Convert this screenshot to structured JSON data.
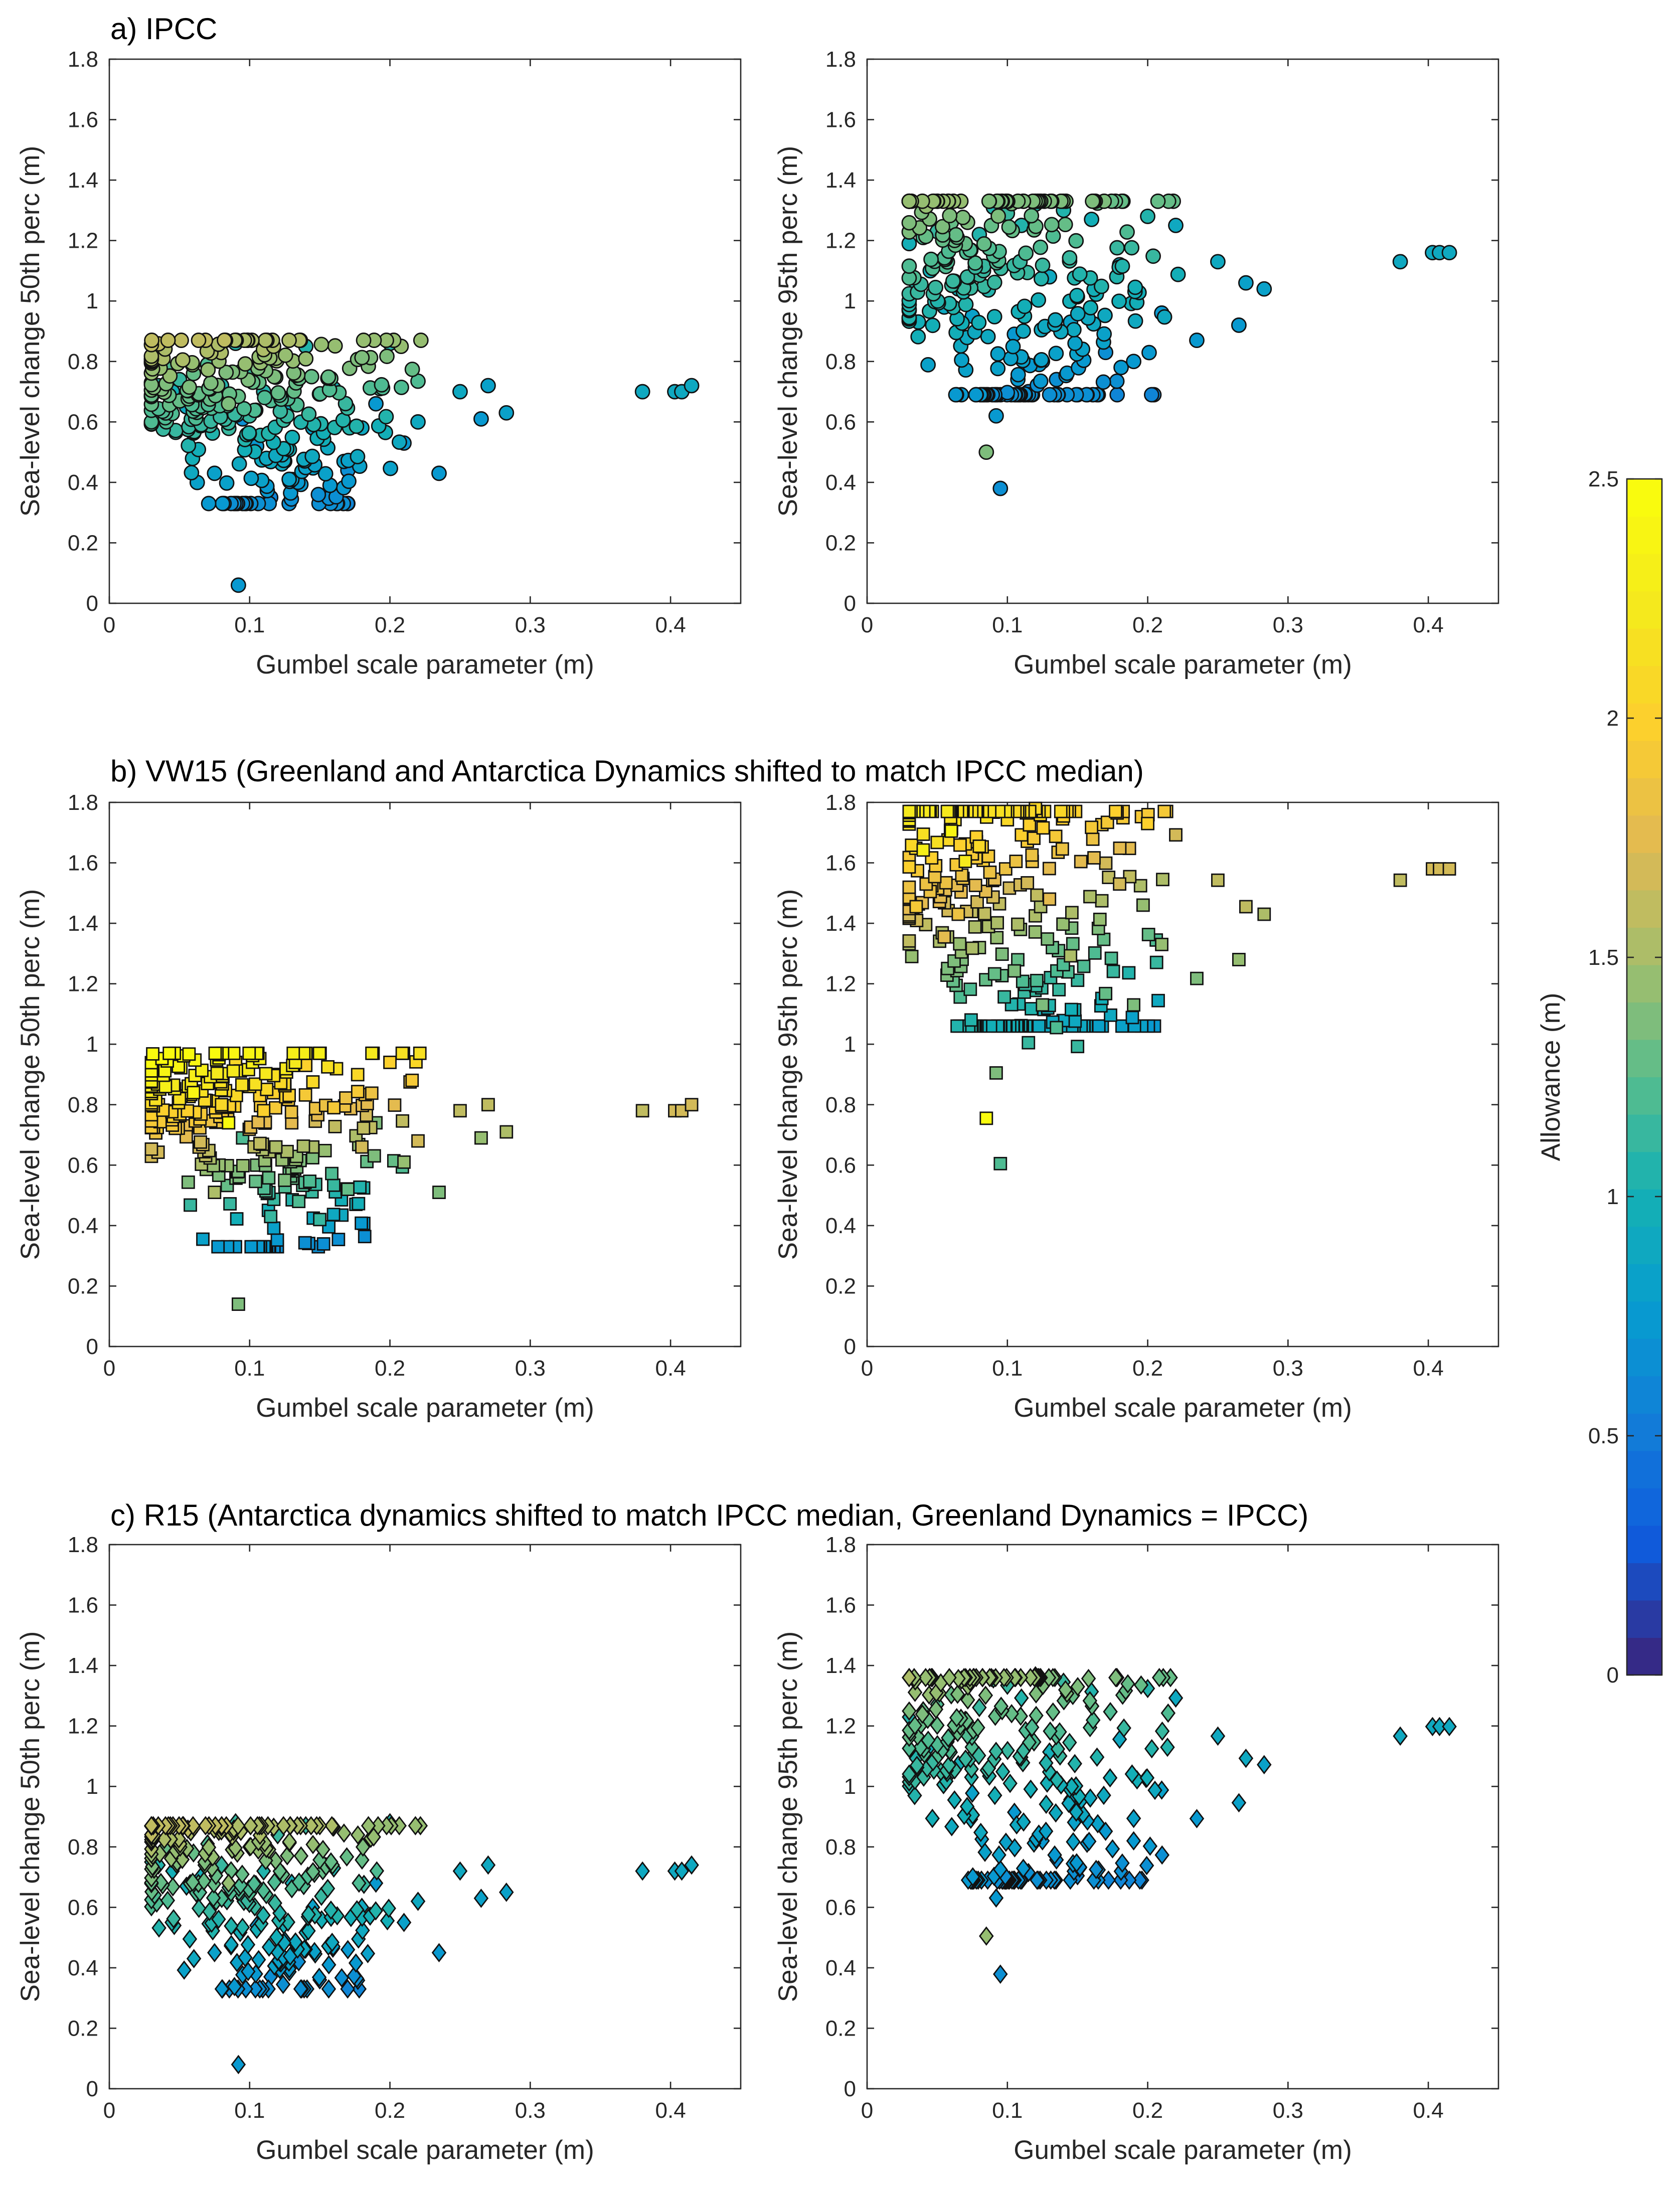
{
  "figure": {
    "panel_titles": [
      "a) IPCC",
      "b) VW15 (Greenland and Antarctica Dynamics shifted to match IPCC median)",
      "c) R15 (Antarctica dynamics shifted to match IPCC median, Greenland Dynamics = IPCC)"
    ]
  },
  "chart_data": {
    "type": "scatter",
    "xlabel": "Gumbel scale parameter (m)",
    "ylabels": {
      "p50": "Sea-level change 50th perc (m)",
      "p95": "Sea-level change 95th perc (m)"
    },
    "xlim": [
      0,
      0.45
    ],
    "ylim": [
      0,
      1.8
    ],
    "xticks": [
      0,
      0.1,
      0.2,
      0.3,
      0.4
    ],
    "xtick_labels": [
      "0",
      "0.1",
      "0.2",
      "0.3",
      "0.4"
    ],
    "yticks": [
      0,
      0.2,
      0.4,
      0.6,
      0.8,
      1,
      1.2,
      1.4,
      1.6,
      1.8
    ],
    "ytick_labels": [
      "0",
      "0.2",
      "0.4",
      "0.6",
      "0.8",
      "1",
      "1.2",
      "1.4",
      "1.6",
      "1.8"
    ],
    "colorbar": {
      "label": "Allowance (m)",
      "range": [
        0,
        2.5
      ],
      "ticks": [
        0,
        0.5,
        1,
        1.5,
        2,
        2.5
      ],
      "tick_labels": [
        "0",
        "0.5",
        "1",
        "1.5",
        "2",
        "2.5"
      ],
      "colormap": "parula",
      "levels": 32
    },
    "panels": [
      {
        "id": "a",
        "dataset": "IPCC",
        "marker": "circle",
        "generator_seed": 11,
        "y50_offset": 0.0,
        "y95_offset": 0.0,
        "slope95": 1.0,
        "allow_base": 1.05
      },
      {
        "id": "b",
        "dataset": "VW15",
        "marker": "square",
        "generator_seed": 23,
        "y50_offset": 0.08,
        "y95_offset": 0.38,
        "slope95": 1.25,
        "allow_base": 2.0
      },
      {
        "id": "c",
        "dataset": "R15",
        "marker": "diamond",
        "generator_seed": 37,
        "y50_offset": 0.02,
        "y95_offset": 0.03,
        "slope95": 1.05,
        "allow_base": 1.1
      }
    ],
    "base_points": {
      "x": [
        0.03,
        0.035,
        0.04,
        0.045,
        0.05,
        0.055,
        0.06,
        0.065,
        0.07,
        0.075,
        0.08,
        0.085,
        0.09,
        0.092,
        0.095,
        0.1,
        0.105,
        0.11,
        0.115,
        0.12,
        0.125,
        0.13,
        0.135,
        0.14,
        0.145,
        0.15,
        0.16,
        0.17,
        0.18,
        0.19,
        0.2,
        0.21,
        0.22,
        0.235,
        0.25,
        0.265,
        0.27,
        0.283,
        0.38,
        0.403,
        0.408,
        0.415
      ],
      "y50": [
        0.73,
        0.72,
        0.78,
        0.7,
        0.74,
        0.65,
        0.76,
        0.68,
        0.79,
        0.43,
        0.72,
        0.66,
        0.86,
        0.06,
        0.61,
        0.78,
        0.52,
        0.7,
        0.35,
        0.82,
        0.47,
        0.66,
        0.4,
        0.85,
        0.58,
        0.34,
        0.71,
        0.44,
        0.58,
        0.66,
        0.86,
        0.53,
        0.6,
        0.43,
        0.7,
        0.61,
        0.72,
        0.63,
        0.7,
        0.7,
        0.7,
        0.72
      ],
      "y95": [
        1.19,
        1.06,
        1.21,
        1.1,
        1.23,
        0.98,
        1.26,
        1.04,
        1.18,
        0.95,
        1.22,
        0.5,
        1.31,
        0.62,
        0.38,
        1.29,
        0.89,
        1.25,
        0.7,
        1.32,
        0.8,
        1.08,
        0.74,
        1.3,
        0.93,
        0.69,
        1.27,
        0.83,
        1.12,
        0.8,
        1.28,
        0.96,
        1.25,
        0.87,
        1.13,
        0.92,
        1.06,
        1.04,
        1.13,
        1.16,
        1.16,
        1.16
      ]
    },
    "allowance_base": [
      0.95,
      0.97,
      1.15,
      0.92,
      1.08,
      0.88,
      1.2,
      0.9,
      1.12,
      0.78,
      1.02,
      1.3,
      1.02,
      0.7,
      0.62,
      1.05,
      0.7,
      0.98,
      0.58,
      1.04,
      0.68,
      0.86,
      0.62,
      1.0,
      0.75,
      0.55,
      0.96,
      0.66,
      0.84,
      0.7,
      0.98,
      0.74,
      0.85,
      0.68,
      0.82,
      0.74,
      0.8,
      0.78,
      0.82,
      0.84,
      0.84,
      0.85
    ]
  }
}
